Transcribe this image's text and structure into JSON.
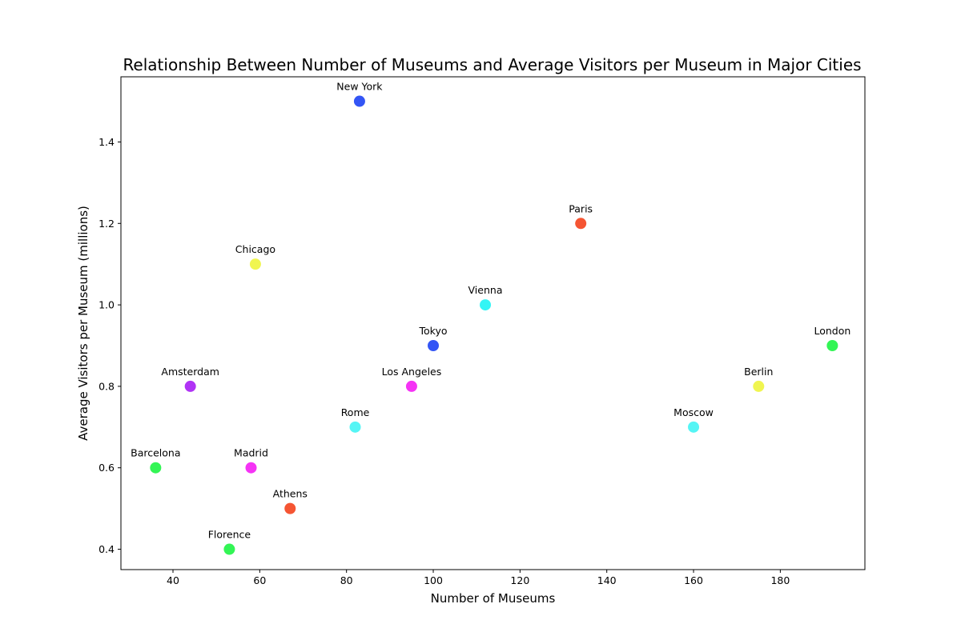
{
  "chart_data": {
    "type": "scatter",
    "title": "Relationship Between Number of Museums and Average Visitors per Museum in Major Cities",
    "xlabel": "Number of Museums",
    "ylabel": "Average Visitors per Museum (millions)",
    "xlim": [
      28,
      199.5
    ],
    "ylim": [
      0.35,
      1.56
    ],
    "xticks": [
      40,
      60,
      80,
      100,
      120,
      140,
      160,
      180
    ],
    "yticks": [
      0.4,
      0.6,
      0.8,
      1.0,
      1.2,
      1.4
    ],
    "grid": false,
    "points": [
      {
        "label": "New York",
        "x": 83,
        "y": 1.5,
        "color": "#3355f5"
      },
      {
        "label": "Paris",
        "x": 134,
        "y": 1.2,
        "color": "#f55533"
      },
      {
        "label": "Chicago",
        "x": 59,
        "y": 1.1,
        "color": "#f0f550"
      },
      {
        "label": "Vienna",
        "x": 112,
        "y": 1.0,
        "color": "#33f5f5"
      },
      {
        "label": "Tokyo",
        "x": 100,
        "y": 0.9,
        "color": "#3355f5"
      },
      {
        "label": "London",
        "x": 192,
        "y": 0.9,
        "color": "#33f555"
      },
      {
        "label": "Amsterdam",
        "x": 44,
        "y": 0.8,
        "color": "#b033f5"
      },
      {
        "label": "Los Angeles",
        "x": 95,
        "y": 0.8,
        "color": "#f533f5"
      },
      {
        "label": "Berlin",
        "x": 175,
        "y": 0.8,
        "color": "#f0f550"
      },
      {
        "label": "Rome",
        "x": 82,
        "y": 0.7,
        "color": "#55f5f5"
      },
      {
        "label": "Moscow",
        "x": 160,
        "y": 0.7,
        "color": "#55f5f5"
      },
      {
        "label": "Barcelona",
        "x": 36,
        "y": 0.6,
        "color": "#33f555"
      },
      {
        "label": "Madrid",
        "x": 58,
        "y": 0.6,
        "color": "#f533f5"
      },
      {
        "label": "Athens",
        "x": 67,
        "y": 0.5,
        "color": "#f55533"
      },
      {
        "label": "Florence",
        "x": 53,
        "y": 0.4,
        "color": "#33f555"
      }
    ]
  }
}
